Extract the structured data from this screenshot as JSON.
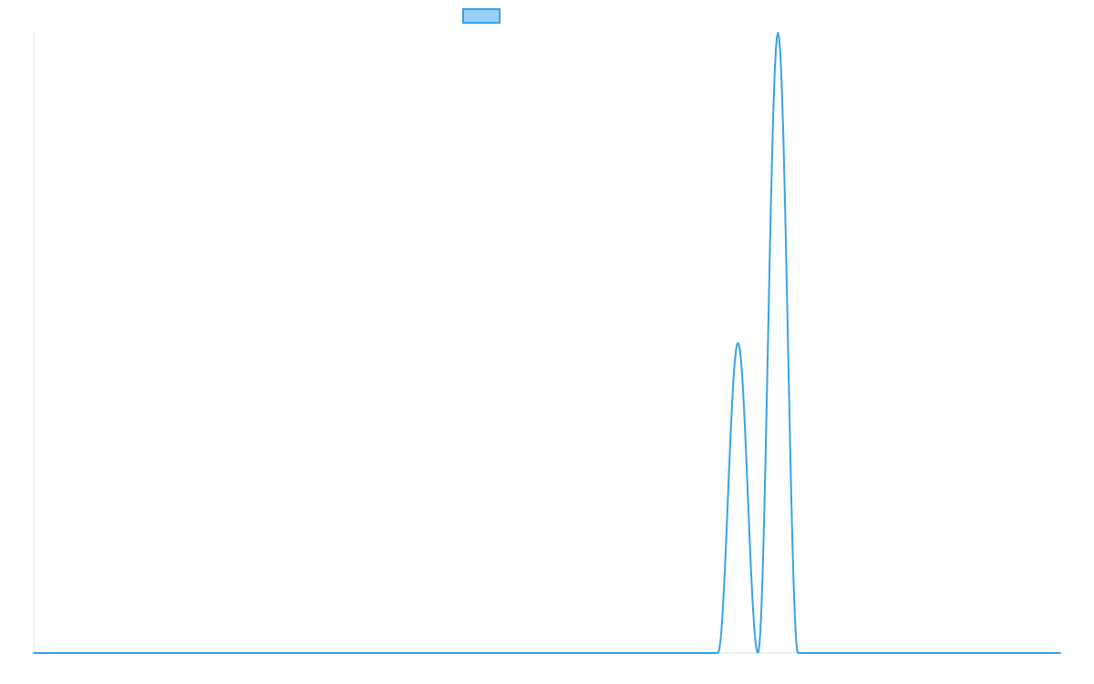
{
  "chart_data": {
    "type": "line",
    "title": "",
    "xlabel": "",
    "ylabel": "",
    "grid": false,
    "legend": "top-center",
    "xlim": [
      0,
      100
    ],
    "ylim": [
      0,
      100
    ],
    "series": [
      {
        "color": "#36a2eb",
        "fill": "#9ad0f5",
        "peaks": [
          {
            "center": 68.6,
            "half_width": 1.95,
            "height": 50
          },
          {
            "center": 72.5,
            "half_width": 1.95,
            "height": 100
          }
        ]
      }
    ]
  }
}
